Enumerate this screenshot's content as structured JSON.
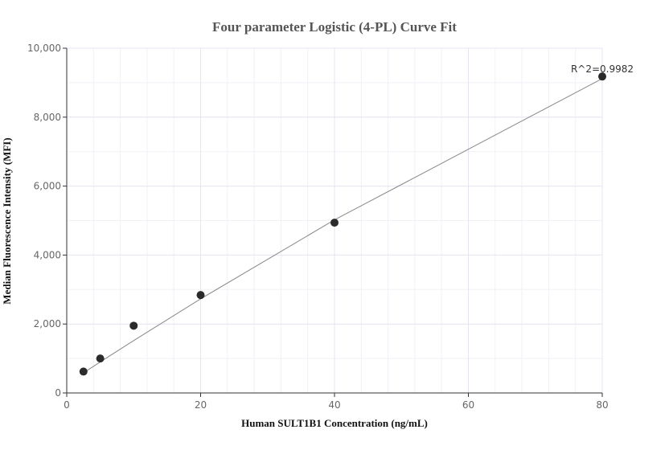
{
  "chart_data": {
    "type": "scatter",
    "title": "Four parameter Logistic (4-PL) Curve Fit",
    "xlabel": "Human SULT1B1 Concentration (ng/mL)",
    "ylabel": "Median Fluorescence Intensity (MFI)",
    "xlim": [
      0,
      80
    ],
    "ylim": [
      0,
      10000
    ],
    "x_ticks": [
      0,
      20,
      40,
      60,
      80
    ],
    "x_tick_labels": [
      "0",
      "20",
      "40",
      "60",
      "80"
    ],
    "y_ticks": [
      0,
      2000,
      4000,
      6000,
      8000,
      10000
    ],
    "y_tick_labels": [
      "0",
      "2,000",
      "4,000",
      "6,000",
      "8,000",
      "10,000"
    ],
    "grid": true,
    "points": {
      "x": [
        2.5,
        5,
        10,
        20,
        40,
        80
      ],
      "y": [
        620,
        1000,
        1950,
        2840,
        4940,
        9180
      ]
    },
    "fit_curve": {
      "x": [
        2.5,
        5,
        10,
        20,
        40,
        80
      ],
      "y": [
        580,
        900,
        1520,
        2730,
        5020,
        9120
      ]
    },
    "annotation": "R^2=0.9982",
    "colors": {
      "points": "#2b2b2b",
      "curve": "#888888",
      "grid": "#e6e6f0"
    }
  }
}
